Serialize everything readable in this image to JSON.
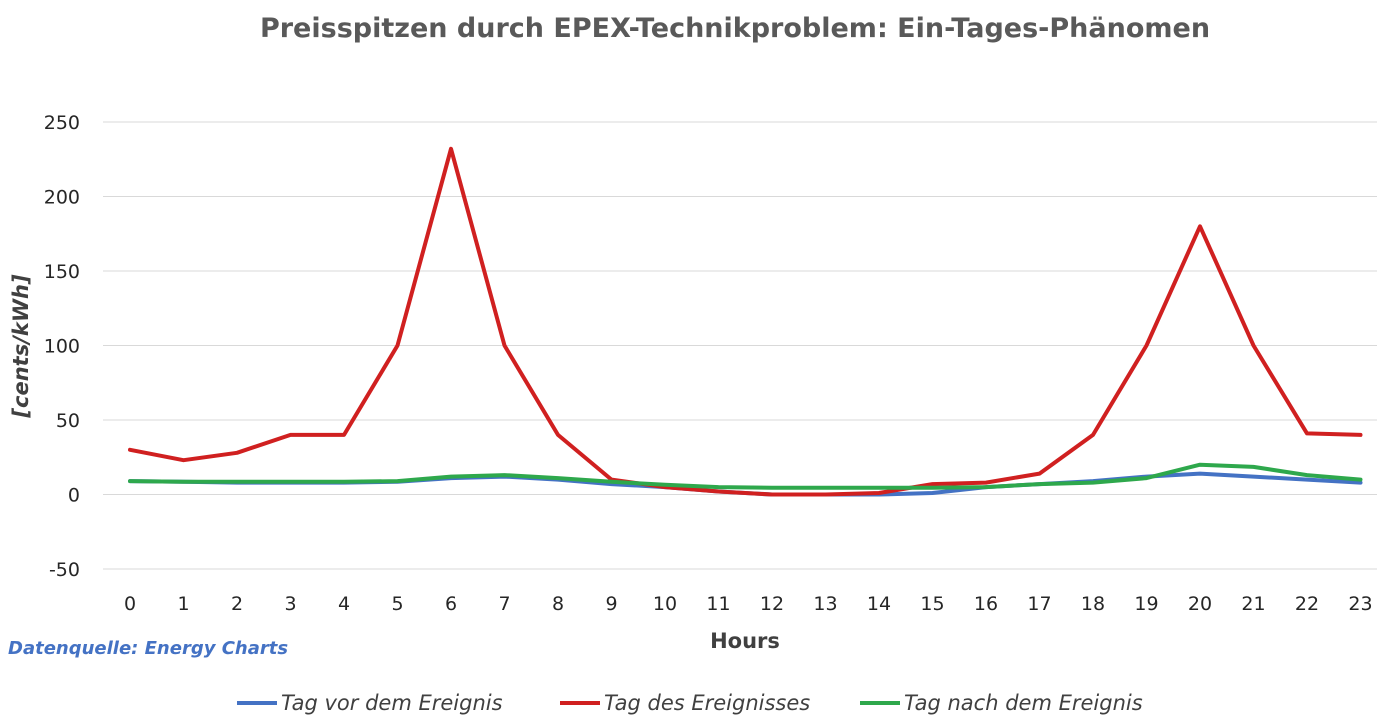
{
  "chart_data": {
    "type": "line",
    "title": "Preisspitzen durch EPEX-Technikproblem: Ein-Tages-Phänomen",
    "xlabel": "Hours",
    "ylabel": "[cents/kWh]",
    "x": [
      0,
      1,
      2,
      3,
      4,
      5,
      6,
      7,
      8,
      9,
      10,
      11,
      12,
      13,
      14,
      15,
      16,
      17,
      18,
      19,
      20,
      21,
      22,
      23
    ],
    "ylim": [
      -50,
      250
    ],
    "yticks": [
      -50,
      0,
      50,
      100,
      150,
      200,
      250
    ],
    "grid": true,
    "legend_position": "bottom",
    "series": [
      {
        "name": "Tag vor dem Ereignis",
        "color": "#4472c4",
        "values": [
          9,
          8.5,
          8,
          8,
          8,
          8.5,
          11,
          12,
          10,
          7,
          5,
          2,
          0,
          0,
          0,
          1,
          5,
          7,
          9,
          12,
          14,
          12,
          10,
          8
        ]
      },
      {
        "name": "Tag des Ereignisses",
        "color": "#d02020",
        "values": [
          30,
          23,
          28,
          40,
          40,
          100,
          232,
          100,
          40,
          10,
          5,
          2,
          0,
          0,
          1,
          7,
          8,
          14,
          40,
          100,
          180,
          100,
          41,
          40
        ]
      },
      {
        "name": "Tag nach dem Ereignis",
        "color": "#2ea84c",
        "values": [
          9,
          8.5,
          8.5,
          8.5,
          8.5,
          9,
          12,
          13,
          11,
          8.5,
          6.5,
          5,
          4.5,
          4.5,
          4.5,
          4.5,
          5,
          7,
          8,
          11,
          20,
          18.5,
          13,
          10
        ]
      }
    ],
    "source_label": "Datenquelle: Energy Charts",
    "source_color": "#4472c4"
  }
}
